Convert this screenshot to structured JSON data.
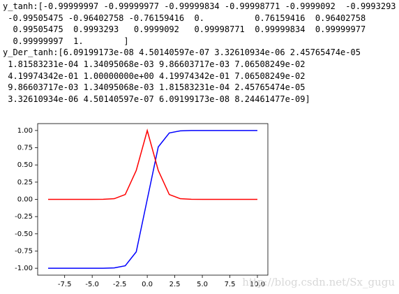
{
  "console": {
    "lines": [
      "y_tanh:[-0.99999997 -0.99999977 -0.99999834 -0.99998771 -0.9999092  -0.9993293",
      " -0.99505475 -0.96402758 -0.76159416  0.          0.76159416  0.96402758",
      "  0.99505475  0.9993293   0.9999092   0.99998771  0.99999834  0.99999977",
      "  0.99999997  1.        ]",
      "y_Der_tanh:[6.09199173e-08 4.50140597e-07 3.32610934e-06 2.45765474e-05",
      " 1.81583231e-04 1.34095068e-03 9.86603717e-03 7.06508249e-02",
      " 4.19974342e-01 1.00000000e+00 4.19974342e-01 7.06508249e-02",
      " 9.86603717e-03 1.34095068e-03 1.81583231e-04 2.45765474e-05",
      " 3.32610934e-06 4.50140597e-07 6.09199173e-08 8.24461477e-09]"
    ]
  },
  "chart_data": {
    "type": "line",
    "x": [
      -9,
      -8,
      -7,
      -6,
      -5,
      -4,
      -3,
      -2,
      -1,
      0,
      1,
      2,
      3,
      4,
      5,
      6,
      7,
      8,
      9,
      10
    ],
    "series": [
      {
        "color": "#0000ff",
        "values": [
          -0.99999997,
          -0.99999977,
          -0.99999834,
          -0.99998771,
          -0.9999092,
          -0.9993293,
          -0.99505475,
          -0.96402758,
          -0.76159416,
          0,
          0.76159416,
          0.96402758,
          0.99505475,
          0.9993293,
          0.9999092,
          0.99998771,
          0.99999834,
          0.99999977,
          0.99999997,
          1
        ]
      },
      {
        "color": "#ff0000",
        "values": [
          6.09199173e-08,
          4.50140597e-07,
          3.32610934e-06,
          2.45765474e-05,
          0.000181583231,
          0.00134095068,
          0.00986603717,
          0.0706508249,
          0.419974342,
          1.0,
          0.419974342,
          0.0706508249,
          0.00986603717,
          0.00134095068,
          0.000181583231,
          2.45765474e-05,
          3.32610934e-06,
          4.50140597e-07,
          6.09199173e-08,
          8.24461477e-09
        ]
      }
    ],
    "xlim": [
      -9.95,
      10.95
    ],
    "ylim": [
      -1.1,
      1.1
    ],
    "xticks": [
      {
        "value": -7.5,
        "label": "-7.5"
      },
      {
        "value": -5,
        "label": "-5.0"
      },
      {
        "value": -2.5,
        "label": "-2.5"
      },
      {
        "value": 0,
        "label": "0.0"
      },
      {
        "value": 2.5,
        "label": "2.5"
      },
      {
        "value": 5,
        "label": "5.0"
      },
      {
        "value": 7.5,
        "label": "7.5"
      },
      {
        "value": 10,
        "label": "10.0"
      }
    ],
    "yticks": [
      {
        "value": -1,
        "label": "-1.00"
      },
      {
        "value": -0.75,
        "label": "-0.75"
      },
      {
        "value": -0.5,
        "label": "-0.50"
      },
      {
        "value": -0.25,
        "label": "-0.25"
      },
      {
        "value": 0,
        "label": "0.00"
      },
      {
        "value": 0.25,
        "label": "0.25"
      },
      {
        "value": 0.5,
        "label": "0.50"
      },
      {
        "value": 0.75,
        "label": "0.75"
      },
      {
        "value": 1,
        "label": "1.00"
      }
    ],
    "watermark": "http://blog.csdn.net/Sx_gugu"
  }
}
